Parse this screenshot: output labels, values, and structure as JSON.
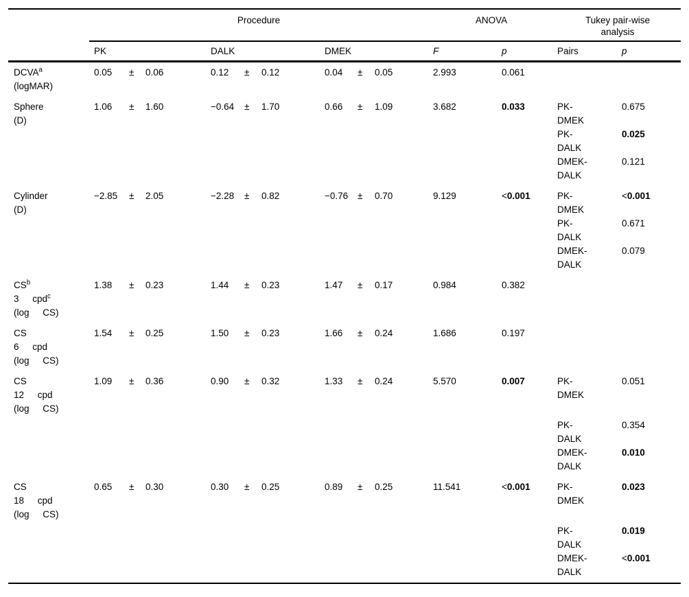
{
  "table": {
    "group_headers": [
      "Procedure",
      "ANOVA",
      "Tukey pair-wise analysis"
    ],
    "col_headers": [
      "PK",
      "DALK",
      "DMEK",
      "F",
      "p",
      "Pairs",
      "p"
    ],
    "plus_minus": "±",
    "rows": [
      {
        "label_lines": [
          "DCVA^a",
          "(logMAR)"
        ],
        "pk": {
          "mean": "0.05",
          "sd": "0.06"
        },
        "dalk": {
          "mean": "0.12",
          "sd": "0.12"
        },
        "dmek": {
          "mean": "0.04",
          "sd": "0.05"
        },
        "f": "2.993",
        "p": {
          "value": "0.061",
          "bold": false
        },
        "pairs": []
      },
      {
        "label_lines": [
          "Sphere",
          "(D)"
        ],
        "pk": {
          "mean": "1.06",
          "sd": "1.60"
        },
        "dalk": {
          "mean": "−0.64",
          "sd": "1.70"
        },
        "dmek": {
          "mean": "0.66",
          "sd": "1.09"
        },
        "f": "3.682",
        "p": {
          "value": "0.033",
          "bold": true
        },
        "pairs": [
          {
            "pair_lines": [
              "PK-",
              "DMEK"
            ],
            "p": {
              "value": "0.675",
              "bold": false
            }
          },
          {
            "pair_lines": [
              "PK-",
              "DALK"
            ],
            "p": {
              "value": "0.025",
              "bold": true
            }
          },
          {
            "pair_lines": [
              "DMEK-",
              "DALK"
            ],
            "p": {
              "value": "0.121",
              "bold": false
            }
          }
        ]
      },
      {
        "label_lines": [
          "Cylinder",
          "(D)"
        ],
        "pk": {
          "mean": "−2.85",
          "sd": "2.05"
        },
        "dalk": {
          "mean": "−2.28",
          "sd": "0.82"
        },
        "dmek": {
          "mean": "−0.76",
          "sd": "0.70"
        },
        "f": "9.129",
        "p": {
          "value": "<0.001",
          "bold": true
        },
        "pairs": [
          {
            "pair_lines": [
              "PK-",
              "DMEK"
            ],
            "p": {
              "value": "<0.001",
              "bold": true
            }
          },
          {
            "pair_lines": [
              "PK-",
              "DALK"
            ],
            "p": {
              "value": "0.671",
              "bold": false
            }
          },
          {
            "pair_lines": [
              "DMEK-",
              "DALK"
            ],
            "p": {
              "value": "0.079",
              "bold": false
            }
          }
        ]
      },
      {
        "label_lines": [
          "CS^b",
          "3 cpd^c",
          "(log CS)"
        ],
        "pk": {
          "mean": "1.38",
          "sd": "0.23"
        },
        "dalk": {
          "mean": "1.44",
          "sd": "0.23"
        },
        "dmek": {
          "mean": "1.47",
          "sd": "0.17"
        },
        "f": "0.984",
        "p": {
          "value": "0.382",
          "bold": false
        },
        "pairs": []
      },
      {
        "label_lines": [
          "CS",
          "6 cpd",
          "(log CS)"
        ],
        "pk": {
          "mean": "1.54",
          "sd": "0.25"
        },
        "dalk": {
          "mean": "1.50",
          "sd": "0.23"
        },
        "dmek": {
          "mean": "1.66",
          "sd": "0.24"
        },
        "f": "1.686",
        "p": {
          "value": "0.197",
          "bold": false
        },
        "pairs": []
      },
      {
        "label_lines": [
          "CS",
          "12 cpd",
          "(log CS)"
        ],
        "pk": {
          "mean": "1.09",
          "sd": "0.36"
        },
        "dalk": {
          "mean": "0.90",
          "sd": "0.32"
        },
        "dmek": {
          "mean": "1.33",
          "sd": "0.24"
        },
        "f": "5.570",
        "p": {
          "value": "0.007",
          "bold": true
        },
        "pairs": [
          {
            "pair_lines": [
              "PK-",
              "DMEK"
            ],
            "p": {
              "value": "0.051",
              "bold": false
            }
          },
          {
            "pair_lines": [
              "PK-",
              "DALK"
            ],
            "p": {
              "value": "0.354",
              "bold": false
            },
            "gap_before": true
          },
          {
            "pair_lines": [
              "DMEK-",
              "DALK"
            ],
            "p": {
              "value": "0.010",
              "bold": true
            }
          }
        ]
      },
      {
        "label_lines": [
          "CS",
          "18 cpd",
          "(log CS)"
        ],
        "pk": {
          "mean": "0.65",
          "sd": "0.30"
        },
        "dalk": {
          "mean": "0.30",
          "sd": "0.25"
        },
        "dmek": {
          "mean": "0.89",
          "sd": "0.25"
        },
        "f": "11.541",
        "p": {
          "value": "<0.001",
          "bold": true
        },
        "pairs": [
          {
            "pair_lines": [
              "PK-",
              "DMEK"
            ],
            "p": {
              "value": "0.023",
              "bold": true
            }
          },
          {
            "pair_lines": [
              "PK-",
              "DALK"
            ],
            "p": {
              "value": "0.019",
              "bold": true
            },
            "gap_before": true
          },
          {
            "pair_lines": [
              "DMEK-",
              "DALK"
            ],
            "p": {
              "value": "<0.001",
              "bold": true
            }
          }
        ]
      }
    ]
  }
}
